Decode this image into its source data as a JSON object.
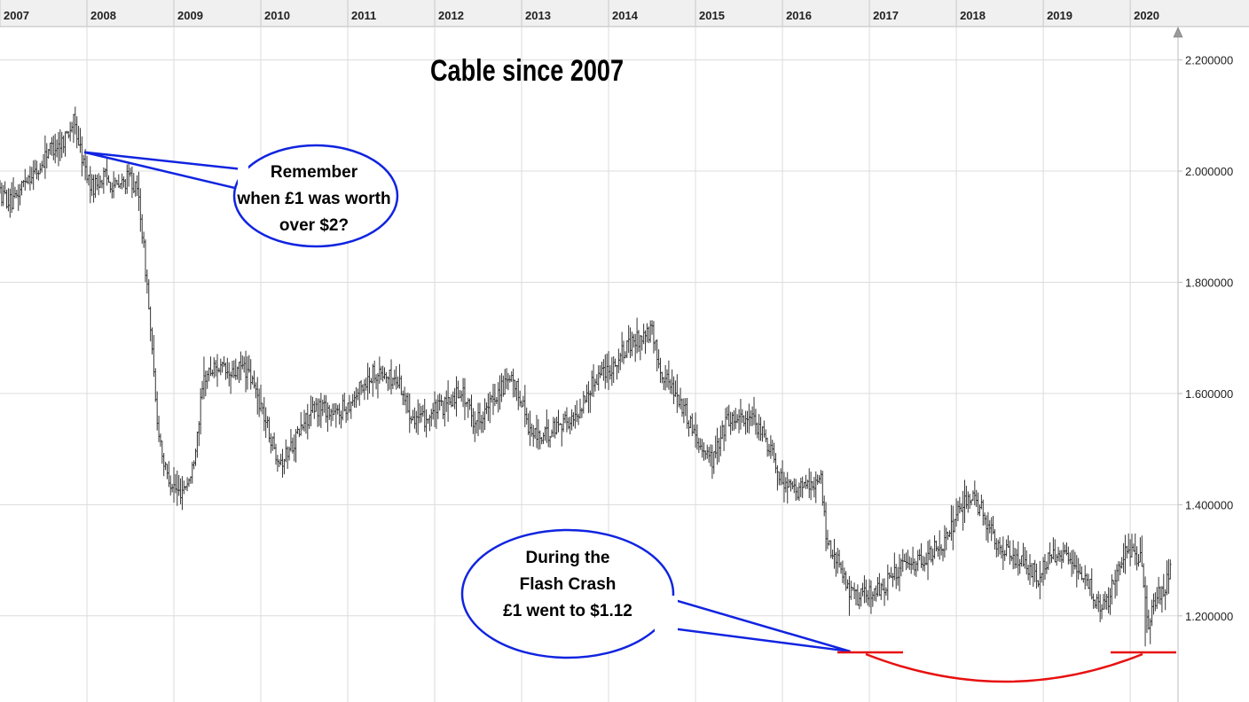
{
  "chart_data": {
    "type": "bar",
    "subtype": "ohlc",
    "title": "Cable since 2007",
    "x_labels": [
      "2007",
      "2008",
      "2009",
      "2010",
      "2011",
      "2012",
      "2013",
      "2014",
      "2015",
      "2016",
      "2017",
      "2018",
      "2019",
      "2020"
    ],
    "y_ticks": [
      "2.200000",
      "2.000000",
      "1.800000",
      "1.600000",
      "1.400000",
      "1.200000"
    ],
    "ylim": [
      1.045,
      2.26
    ],
    "xlim": [
      2007.0,
      2020.55
    ],
    "grid": true,
    "y_axis_side": "right",
    "series_color": "#333333",
    "price_path": [
      [
        2007.0,
        1.96
      ],
      [
        2007.15,
        1.94
      ],
      [
        2007.3,
        1.99
      ],
      [
        2007.45,
        2.0
      ],
      [
        2007.55,
        2.04
      ],
      [
        2007.7,
        2.05
      ],
      [
        2007.85,
        2.09
      ],
      [
        2007.95,
        2.02
      ],
      [
        2008.05,
        1.97
      ],
      [
        2008.2,
        1.99
      ],
      [
        2008.35,
        1.97
      ],
      [
        2008.5,
        1.99
      ],
      [
        2008.6,
        1.95
      ],
      [
        2008.7,
        1.78
      ],
      [
        2008.8,
        1.56
      ],
      [
        2008.9,
        1.46
      ],
      [
        2009.05,
        1.42
      ],
      [
        2009.2,
        1.45
      ],
      [
        2009.35,
        1.63
      ],
      [
        2009.5,
        1.65
      ],
      [
        2009.65,
        1.63
      ],
      [
        2009.8,
        1.65
      ],
      [
        2009.9,
        1.62
      ],
      [
        2010.0,
        1.58
      ],
      [
        2010.15,
        1.5
      ],
      [
        2010.25,
        1.48
      ],
      [
        2010.4,
        1.52
      ],
      [
        2010.55,
        1.56
      ],
      [
        2010.7,
        1.58
      ],
      [
        2010.85,
        1.56
      ],
      [
        2011.0,
        1.58
      ],
      [
        2011.15,
        1.61
      ],
      [
        2011.3,
        1.64
      ],
      [
        2011.45,
        1.63
      ],
      [
        2011.6,
        1.62
      ],
      [
        2011.7,
        1.57
      ],
      [
        2011.85,
        1.55
      ],
      [
        2012.0,
        1.57
      ],
      [
        2012.15,
        1.58
      ],
      [
        2012.3,
        1.61
      ],
      [
        2012.45,
        1.55
      ],
      [
        2012.6,
        1.57
      ],
      [
        2012.75,
        1.61
      ],
      [
        2012.9,
        1.62
      ],
      [
        2013.0,
        1.59
      ],
      [
        2013.1,
        1.53
      ],
      [
        2013.25,
        1.52
      ],
      [
        2013.45,
        1.55
      ],
      [
        2013.6,
        1.55
      ],
      [
        2013.75,
        1.6
      ],
      [
        2013.9,
        1.64
      ],
      [
        2014.05,
        1.65
      ],
      [
        2014.2,
        1.68
      ],
      [
        2014.35,
        1.7
      ],
      [
        2014.5,
        1.71
      ],
      [
        2014.6,
        1.64
      ],
      [
        2014.75,
        1.61
      ],
      [
        2014.9,
        1.56
      ],
      [
        2015.05,
        1.51
      ],
      [
        2015.2,
        1.48
      ],
      [
        2015.35,
        1.55
      ],
      [
        2015.5,
        1.56
      ],
      [
        2015.65,
        1.55
      ],
      [
        2015.8,
        1.52
      ],
      [
        2015.9,
        1.49
      ],
      [
        2016.0,
        1.44
      ],
      [
        2016.15,
        1.42
      ],
      [
        2016.3,
        1.44
      ],
      [
        2016.45,
        1.44
      ],
      [
        2016.5,
        1.34
      ],
      [
        2016.6,
        1.31
      ],
      [
        2016.75,
        1.25
      ],
      [
        2016.85,
        1.23
      ],
      [
        2016.95,
        1.24
      ],
      [
        2017.15,
        1.25
      ],
      [
        2017.3,
        1.28
      ],
      [
        2017.45,
        1.29
      ],
      [
        2017.6,
        1.3
      ],
      [
        2017.75,
        1.32
      ],
      [
        2017.9,
        1.34
      ],
      [
        2018.05,
        1.4
      ],
      [
        2018.2,
        1.41
      ],
      [
        2018.3,
        1.39
      ],
      [
        2018.45,
        1.33
      ],
      [
        2018.6,
        1.31
      ],
      [
        2018.8,
        1.29
      ],
      [
        2018.95,
        1.27
      ],
      [
        2019.1,
        1.31
      ],
      [
        2019.25,
        1.31
      ],
      [
        2019.4,
        1.27
      ],
      [
        2019.55,
        1.25
      ],
      [
        2019.65,
        1.21
      ],
      [
        2019.75,
        1.23
      ],
      [
        2019.85,
        1.29
      ],
      [
        2019.95,
        1.32
      ],
      [
        2020.05,
        1.31
      ],
      [
        2020.12,
        1.3
      ],
      [
        2020.2,
        1.18
      ],
      [
        2020.3,
        1.24
      ],
      [
        2020.4,
        1.25
      ],
      [
        2020.5,
        1.3
      ]
    ],
    "annotations": [
      {
        "lines": [
          "Remember",
          "when £1 was worth",
          "over $2?"
        ],
        "color": "#1024e0",
        "points_to": [
          2007.97,
          2.034
        ]
      },
      {
        "lines": [
          "During the",
          "Flash Crash",
          "£1 went to $1.12"
        ],
        "color": "#1024e0",
        "points_to": [
          2016.78,
          1.136
        ]
      }
    ],
    "marker_levels": [
      {
        "x": 2016.78,
        "y": 1.136,
        "color": "#e81010"
      },
      {
        "x": 2020.17,
        "y": 1.136,
        "color": "#e81010"
      }
    ]
  }
}
